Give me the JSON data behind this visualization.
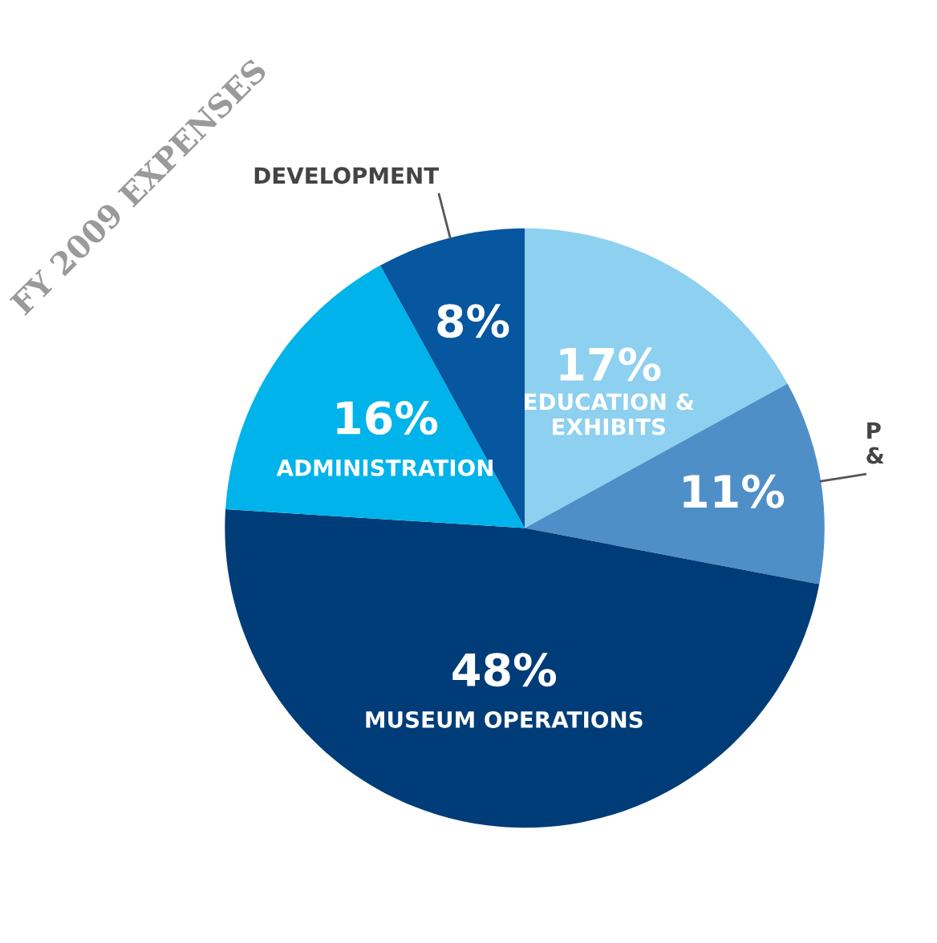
{
  "chart_data": {
    "type": "pie",
    "title": "FY 2009 EXPENSES",
    "categories": [
      "EDUCATION &\nEXHIBITS",
      "P\n&",
      "MUSEUM OPERATIONS",
      "ADMINISTRATION",
      "DEVELOPMENT"
    ],
    "values": [
      17,
      11,
      48,
      16,
      8
    ],
    "colors": [
      "#8dd0ef",
      "#4f8fc8",
      "#003c78",
      "#00b3ea",
      "#0656a0"
    ],
    "value_labels": [
      "17%",
      "11%",
      "48%",
      "16%",
      "8%"
    ]
  }
}
